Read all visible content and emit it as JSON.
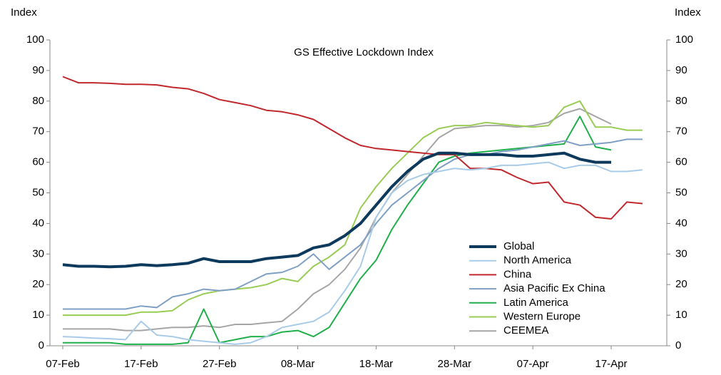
{
  "chart_data": {
    "type": "line",
    "title": "GS Effective Lockdown Index",
    "y_label": "Index",
    "y2_label": "Index",
    "categories": [
      "07-Feb",
      null,
      null,
      null,
      null,
      "17-Feb",
      null,
      null,
      null,
      null,
      "27-Feb",
      null,
      null,
      null,
      null,
      "08-Mar",
      null,
      null,
      null,
      null,
      "18-Mar",
      null,
      null,
      null,
      null,
      "28-Mar",
      null,
      null,
      null,
      null,
      "07-Apr",
      null,
      null,
      null,
      null,
      "17-Apr",
      null,
      null
    ],
    "ylim": [
      0,
      100
    ],
    "yticks": [
      0,
      10,
      20,
      30,
      40,
      50,
      60,
      70,
      80,
      90,
      100
    ],
    "y2lim": [
      0,
      100
    ],
    "y2ticks": [
      0,
      10,
      20,
      30,
      40,
      50,
      60,
      70,
      80,
      90,
      100
    ],
    "legend": "lower right",
    "series": [
      {
        "name": "Global",
        "color": "#0d3a5c",
        "values": [
          26.5,
          26,
          26,
          25.8,
          26,
          26.5,
          26.2,
          26.5,
          27,
          28.5,
          27.5,
          27.5,
          27.5,
          28.5,
          29,
          29.5,
          32,
          33,
          36,
          40,
          46,
          52,
          57,
          61,
          63,
          63,
          62.5,
          62.5,
          62.5,
          62,
          62,
          62.5,
          63,
          61,
          60,
          60,
          null,
          null
        ]
      },
      {
        "name": "North America",
        "color": "#a8cbe8",
        "values": [
          3,
          2.8,
          2.5,
          2.3,
          2,
          8,
          3.5,
          3,
          2,
          1.5,
          1,
          0.5,
          1,
          3,
          6,
          7,
          8,
          11,
          18,
          26,
          42,
          50,
          54,
          56,
          57,
          58,
          57.5,
          58,
          59,
          59,
          59.5,
          60,
          58,
          59,
          59,
          57,
          57,
          57.5
        ]
      },
      {
        "name": "China",
        "color": "#c0282d",
        "values": [
          88,
          86,
          86,
          85.8,
          85.5,
          85.5,
          85.3,
          84.5,
          84,
          82.5,
          80.5,
          79.5,
          78.5,
          77,
          76.5,
          75.5,
          74,
          71,
          68,
          65.5,
          64.5,
          64,
          63.5,
          63,
          62.5,
          62.5,
          58,
          58,
          57.5,
          55,
          53,
          53.5,
          47,
          46,
          42,
          41.5,
          47,
          46.5
        ]
      },
      {
        "name": "Asia Pacific Ex China",
        "color": "#7f9fc4",
        "values": [
          12,
          12,
          12,
          12,
          12,
          13,
          12.5,
          16,
          17,
          18.5,
          18,
          18.5,
          21,
          23.5,
          24,
          26,
          30,
          25,
          29,
          33,
          40,
          46,
          50,
          54,
          58,
          61,
          62.5,
          62.5,
          63.5,
          64,
          65,
          66,
          67,
          65.5,
          66,
          66.5,
          67.5,
          67.5
        ]
      },
      {
        "name": "Latin America",
        "color": "#20b04b",
        "values": [
          1,
          1,
          1,
          1,
          0.5,
          0.5,
          0.5,
          0.5,
          1,
          12,
          1,
          2,
          3,
          3,
          4.5,
          5,
          3,
          6,
          14,
          22,
          28,
          38,
          46,
          53,
          60,
          62,
          63,
          63.5,
          64,
          64.5,
          65,
          65.5,
          66,
          75,
          65,
          64,
          null,
          null
        ]
      },
      {
        "name": "Western Europe",
        "color": "#99cc55",
        "values": [
          10,
          10,
          10,
          10,
          10,
          11,
          11,
          11.5,
          15,
          17,
          18,
          18.5,
          19,
          20,
          22,
          21,
          26,
          29,
          33,
          45,
          52,
          58,
          63,
          68,
          71,
          72,
          72,
          73,
          72.5,
          72,
          71.5,
          72,
          78,
          80,
          71.5,
          71.5,
          70.5,
          70.5
        ]
      },
      {
        "name": "CEEMEA",
        "color": "#a6a6a6",
        "values": [
          5.5,
          5.5,
          5.5,
          5.5,
          5,
          5,
          5.5,
          6,
          6,
          6.5,
          6,
          7,
          7,
          7.5,
          8,
          12,
          17,
          20,
          25,
          32,
          42,
          50,
          56,
          62,
          68,
          71,
          71.5,
          72,
          72,
          71.5,
          72,
          73,
          76,
          77.5,
          75,
          72.5,
          null,
          null
        ]
      }
    ]
  }
}
